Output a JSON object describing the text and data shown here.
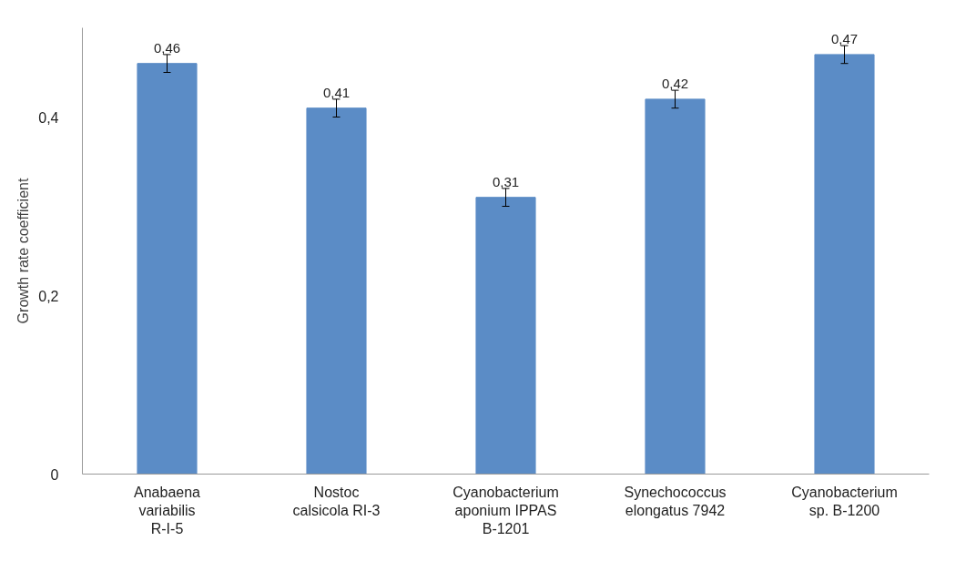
{
  "chart_data": {
    "type": "bar",
    "ylabel": "Growth rate coefficient",
    "categories": [
      "Anabaena variabilis R-I-5",
      "Nostoc calsicola RI-3",
      "Cyanobacterium aponium IPPAS B-1201",
      "Synechococcus elongatus 7942",
      "Cyanobacterium sp. B-1200"
    ],
    "values": [
      0.46,
      0.41,
      0.31,
      0.42,
      0.47
    ],
    "errors": [
      0.01,
      0.01,
      0.01,
      0.01,
      0.01
    ],
    "value_labels": [
      "0,46",
      "0,41",
      "0,31",
      "0,42",
      "0,47"
    ],
    "color": "#5b8cc6",
    "ylim": [
      0,
      0.5
    ],
    "yticks": [
      0,
      {
        "value": 0.2,
        "label": "0,2"
      },
      {
        "value": 0.4,
        "label": "0,4"
      }
    ],
    "grid": false
  }
}
